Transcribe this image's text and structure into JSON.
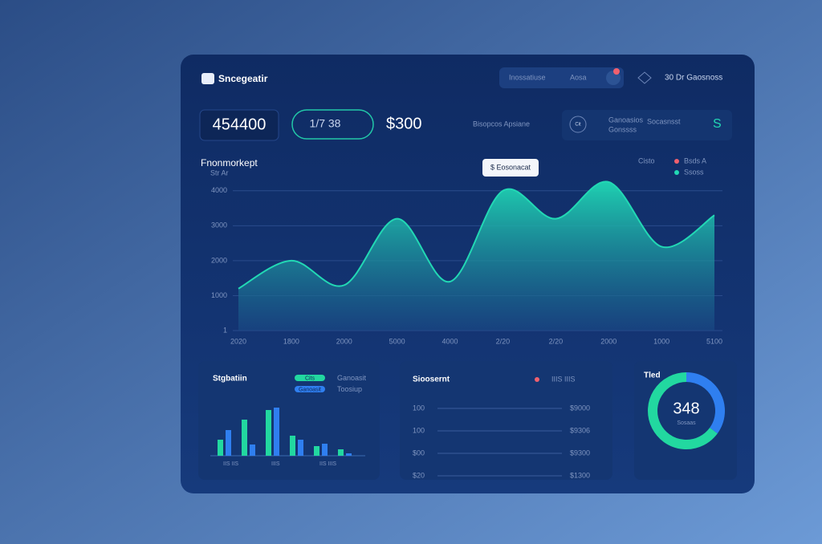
{
  "header": {
    "title": "Sncegeatir",
    "search": "Inossatiuse",
    "search_hint": "Aosa",
    "user": "30 Dr Gaosnoss"
  },
  "stats": {
    "total": "454400",
    "range": "1/7 38",
    "amount": "$300",
    "label": "Bisopcos Apsiane",
    "icon_text": "Cit",
    "detail_1": "Ganoasios",
    "detail_2": "Gonssss",
    "detail_3": "Socasnsst",
    "currency": "S"
  },
  "ranking": {
    "title": "Sioosernt",
    "legend": "IIIS IIIS",
    "rows": [
      [
        "100",
        "$9000"
      ],
      [
        "100",
        "$9306"
      ],
      [
        "$00",
        "$9300"
      ],
      [
        "$20",
        "$1300"
      ]
    ]
  },
  "chart_data": [
    {
      "type": "area",
      "title": "Fnonmorkept",
      "subtitle": "Str Ar",
      "tooltip": "$ Eosonacat",
      "legend_title": "Cisto",
      "legend_items": [
        {
          "name": "Bsds A",
          "color": "#f0606e"
        }
      ],
      "categories": [
        "2020",
        "1800",
        "2000",
        "5000",
        "4000",
        "2/20",
        "2/20",
        "2000",
        "1000",
        "5100"
      ],
      "series": [
        {
          "name": "Ssoss",
          "color": "#22d8b4",
          "values": [
            1200,
            2000,
            1300,
            3200,
            1400,
            4000,
            3200,
            4250,
            2400,
            3300
          ]
        }
      ],
      "ylim": [
        0,
        4500
      ],
      "yticks": [
        1,
        1000,
        2000,
        3000,
        4000
      ],
      "grid": true
    },
    {
      "type": "bar",
      "title": "Stgbatiin",
      "categories": [
        "IIS IIS",
        null,
        "IIIS",
        null,
        "IIS IIIS",
        null
      ],
      "series": [
        {
          "name": "Cits",
          "color": "#22d8a0",
          "values": [
            20,
            45,
            57,
            25,
            12,
            8
          ]
        },
        {
          "name": "Ganoasit",
          "color": "#2f7ff0",
          "values": [
            32,
            14,
            60,
            20,
            15,
            3
          ]
        }
      ],
      "legend_notes": [
        "Ganoasit",
        "Toosiup"
      ],
      "ylim": [
        0,
        70
      ]
    },
    {
      "type": "pie",
      "title": "Tled",
      "center_label": "348",
      "center_sub": "Sosaas",
      "values": [
        35,
        65
      ],
      "colors": [
        "#2f7ff0",
        "#22d8a0"
      ]
    }
  ]
}
